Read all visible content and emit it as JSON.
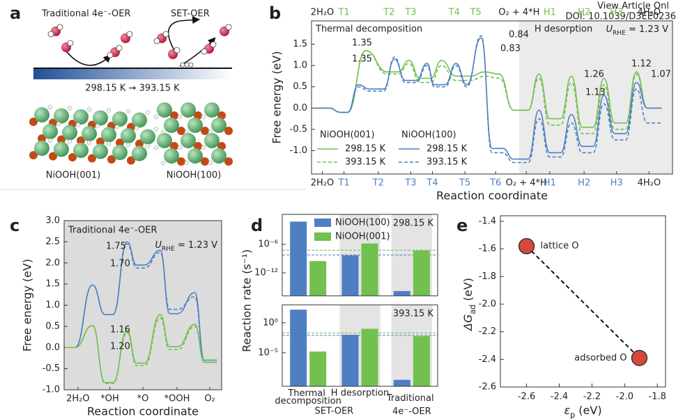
{
  "header": {
    "link": "View Article Onl",
    "doi": "DOI: 10.1039/D3EE0236"
  },
  "panel_a": {
    "label": "a",
    "left_title": "Traditional 4e⁻-OER",
    "right_title": "SET-OER",
    "temperature": "298.15 K → 393.15 K",
    "left_caption": "NiOOH(001)",
    "right_caption": "NiOOH(100)"
  },
  "panel_labels": [
    "b",
    "c",
    "d",
    "e"
  ],
  "chart_data": [
    {
      "type": "energy_profile",
      "xlim": [
        0,
        100
      ],
      "ylim": [
        -1.55,
        2.05
      ],
      "yticks": [
        {
          "value": -1,
          "label": "-1.0"
        },
        -0.5,
        {
          "value": 0,
          "label": "0.0"
        },
        0.5,
        {
          "value": 1,
          "label": "1.0"
        },
        1.5
      ],
      "xticks": [
        {
          "value": 3,
          "label": "2H₂O"
        },
        {
          "value": 9,
          "label": "T1"
        },
        {
          "value": 18.5,
          "label": "T2"
        },
        {
          "value": 27.5,
          "label": "T3"
        },
        {
          "value": 33.5,
          "label": "T4"
        },
        {
          "value": 42.5,
          "label": "T5"
        },
        {
          "value": 51,
          "label": "T6"
        },
        {
          "value": 59.5,
          "label": "O₂ + 4*H"
        },
        {
          "value": 66,
          "label": "H1"
        },
        {
          "value": 75.5,
          "label": "H2"
        },
        {
          "value": 84.5,
          "label": "H3"
        },
        {
          "value": 93.5,
          "label": "4H₂O"
        }
      ],
      "x2ticks": [
        {
          "value": 3,
          "label": "2H₂O"
        },
        {
          "value": 9,
          "label": "T1"
        },
        {
          "value": 21.5,
          "label": "T2"
        },
        {
          "value": 27.5,
          "label": "T3"
        },
        {
          "value": 39.5,
          "label": "T4"
        },
        {
          "value": 45.5,
          "label": "T5"
        },
        {
          "value": 57.5,
          "label": "O₂ + 4*H"
        },
        {
          "value": 66,
          "label": "H1"
        },
        {
          "value": 75.5,
          "label": "H2"
        },
        {
          "value": 84.5,
          "label": "H3"
        },
        {
          "value": 93.5,
          "label": "4H₂O"
        }
      ],
      "xtick_color": "#4e7fc3",
      "x2tick_color": "#72c04e",
      "xlabel": "Reaction coordinate",
      "ylabel": "Free energy (eV)",
      "shaded_x": [
        57.5,
        100
      ],
      "shade_color": "#ebebeb",
      "regions": [
        "Thermal decomposition",
        "H desorption"
      ],
      "potential": {
        "symbol": "U",
        "subscript": "RHE",
        "text": " = 1.23 V"
      },
      "legend_groups": [
        "NiOOH(001)",
        "NiOOH(100)"
      ],
      "series": [
        {
          "name": "298.15 K",
          "color": "#72c04e",
          "dash": false,
          "x": [
            1,
            5,
            8,
            10,
            15,
            21,
            24,
            27,
            30,
            33,
            36,
            40,
            44,
            48,
            52,
            56,
            60,
            63,
            66,
            69,
            72,
            75,
            78,
            81,
            84,
            87,
            90,
            93,
            97
          ],
          "values": [
            0,
            0,
            -0.1,
            -0.1,
            1.35,
            0.85,
            0.85,
            1.12,
            0.7,
            0.7,
            1.12,
            0.75,
            0.75,
            0.85,
            0.8,
            -0.05,
            -0.05,
            0.8,
            -0.25,
            -0.25,
            0.75,
            -0.45,
            -0.45,
            0.7,
            -0.35,
            -0.35,
            0.85,
            0,
            0
          ]
        },
        {
          "name": "393.15 K",
          "color": "#72c04e",
          "dash": true,
          "x": [
            1,
            5,
            8,
            10,
            15,
            21,
            24,
            27,
            30,
            33,
            36,
            40,
            44,
            48,
            52,
            56,
            60,
            63,
            66,
            69,
            72,
            75,
            78,
            81,
            84,
            87,
            90,
            93,
            97
          ],
          "values": [
            0,
            0,
            -0.1,
            -0.1,
            1.35,
            0.8,
            0.8,
            1.05,
            0.6,
            0.6,
            1.0,
            0.65,
            0.65,
            0.75,
            0.7,
            -0.05,
            -0.05,
            0.7,
            -0.4,
            -0.4,
            0.6,
            -0.6,
            -0.6,
            0.55,
            -0.5,
            -0.5,
            0.8,
            0,
            0
          ]
        },
        {
          "name": "298.15 K",
          "color": "#4e7fc3",
          "dash": false,
          "x": [
            1,
            5,
            8,
            10,
            13,
            16,
            20,
            23,
            26,
            29,
            32,
            34,
            37,
            40,
            43,
            47,
            50,
            53,
            56,
            60,
            63,
            66,
            69,
            72,
            75,
            78,
            81,
            84,
            87,
            90,
            93,
            97
          ],
          "values": [
            0,
            0,
            -0.1,
            -0.1,
            0.55,
            0.45,
            0.45,
            1.15,
            0.65,
            0.65,
            1.05,
            0.55,
            0.55,
            1.05,
            0.55,
            1.65,
            -0.95,
            -0.95,
            -1.2,
            -1.2,
            -0.05,
            -1.05,
            -1.05,
            -0.15,
            -0.9,
            -0.9,
            0.3,
            -0.6,
            -0.6,
            0.6,
            0,
            0
          ]
        },
        {
          "name": "393.15 K",
          "color": "#4e7fc3",
          "dash": true,
          "x": [
            1,
            5,
            8,
            10,
            13,
            16,
            20,
            23,
            26,
            29,
            32,
            34,
            37,
            40,
            43,
            47,
            50,
            53,
            56,
            60,
            63,
            66,
            69,
            72,
            75,
            78,
            81,
            84,
            87,
            90,
            93,
            97
          ],
          "values": [
            0,
            0,
            -0.1,
            -0.1,
            0.5,
            0.4,
            0.4,
            1.2,
            0.6,
            0.6,
            1.0,
            0.5,
            0.5,
            1.0,
            0.5,
            1.7,
            -1.05,
            -1.05,
            -1.28,
            -1.28,
            -0.25,
            -1.15,
            -1.15,
            -0.35,
            -1.05,
            -1.05,
            0.1,
            -0.75,
            -0.75,
            0.45,
            -0.35,
            -0.35
          ]
        }
      ],
      "annotations": [
        {
          "text": "1.35",
          "color": "#72c04e"
        },
        {
          "text": "1.35",
          "color": "#72c04e"
        },
        {
          "text": "0.84",
          "color": "#4e7fc3"
        },
        {
          "text": "0.83",
          "color": "#4e7fc3"
        },
        {
          "text": "1.26",
          "color": "#4e7fc3"
        },
        {
          "text": "1.13",
          "color": "#4e7fc3"
        },
        {
          "text": "1.12",
          "color": "#72c04e"
        },
        {
          "text": "1.07",
          "color": "#72c04e"
        }
      ]
    },
    {
      "type": "energy_profile",
      "xlim": [
        0,
        100
      ],
      "ylim": [
        -1,
        3
      ],
      "yticks": [
        {
          "value": -1,
          "label": "-1.0"
        },
        -0.5,
        {
          "value": 0,
          "label": "0.0"
        },
        0.5,
        {
          "value": 1,
          "label": "1.0"
        },
        1.5,
        {
          "value": 2,
          "label": "2.0"
        },
        2.5,
        {
          "value": 3,
          "label": "3.0"
        }
      ],
      "xticks": [
        {
          "value": 8.8,
          "label": "2H₂O"
        },
        {
          "value": 29,
          "label": "*OH"
        },
        {
          "value": 50,
          "label": "*O"
        },
        {
          "value": 71.7,
          "label": "*OOH"
        },
        {
          "value": 92.5,
          "label": "O₂"
        }
      ],
      "xlabel": "Reaction coordinate",
      "ylabel": "Free energy (eV)",
      "shaded_x": [
        0,
        100
      ],
      "shade_color": "#dcdcdc",
      "title": "Traditional 4e⁻-OER",
      "potential": {
        "symbol": "U",
        "subscript": "RHE",
        "text": " = 1.23 V"
      },
      "series": [
        {
          "color": "#4e7fc3",
          "dash": false,
          "x": [
            1,
            7,
            18,
            26,
            31,
            40,
            46,
            51,
            61,
            67,
            72,
            83,
            89,
            97
          ],
          "values": [
            0,
            0,
            1.48,
            0.78,
            0.78,
            2.5,
            1.95,
            1.95,
            2.3,
            0.8,
            0.8,
            1.3,
            -0.3,
            -0.3
          ]
        },
        {
          "color": "#4e7fc3",
          "dash": true,
          "x": [
            1,
            7,
            18,
            26,
            31,
            40,
            46,
            51,
            61,
            67,
            72,
            83,
            89,
            97
          ],
          "values": [
            0,
            0,
            1.48,
            0.78,
            0.78,
            2.45,
            1.88,
            1.88,
            2.25,
            0.9,
            0.9,
            1.2,
            -0.35,
            -0.35
          ]
        },
        {
          "color": "#72c04e",
          "dash": false,
          "x": [
            1,
            7,
            18,
            26,
            31,
            40,
            46,
            51,
            61,
            67,
            72,
            83,
            89,
            97
          ],
          "values": [
            0,
            0,
            0.52,
            -0.83,
            -0.83,
            0.4,
            -0.37,
            -0.37,
            0.78,
            0.02,
            0.02,
            0.55,
            -0.35,
            -0.35
          ]
        },
        {
          "color": "#72c04e",
          "dash": true,
          "x": [
            1,
            7,
            18,
            26,
            31,
            40,
            46,
            51,
            61,
            67,
            72,
            83,
            89,
            97
          ],
          "values": [
            0,
            0,
            0.52,
            -0.85,
            -0.85,
            0.35,
            -0.43,
            -0.43,
            0.7,
            -0.05,
            -0.05,
            0.5,
            -0.3,
            -0.3
          ]
        }
      ],
      "annotations": [
        {
          "text": "1.75",
          "color": "#4e7fc3"
        },
        {
          "text": "1.70",
          "color": "#4e7fc3"
        },
        {
          "text": "1.16",
          "color": "#72c04e"
        },
        {
          "text": "1.20",
          "color": "#72c04e"
        }
      ]
    },
    {
      "type": "bar",
      "yscale": "log",
      "title": "298.15 K",
      "ylabel": "Reaction rate (s⁻¹)",
      "ylim": [
        1.5e-17,
        2
      ],
      "yticks": [
        {
          "value": 1e-06,
          "label": "10⁻⁶"
        },
        {
          "value": 1e-12,
          "label": "10⁻¹²"
        }
      ],
      "shaded": [
        false,
        true,
        true
      ],
      "series": [
        {
          "name": "NiOOH(100)",
          "color": "#4e7fc3",
          "values": [
            0.06,
            5e-09,
            1.5e-16
          ]
        },
        {
          "name": "NiOOH(001)",
          "color": "#72c04e",
          "values": [
            3e-10,
            1.5e-06,
            5e-08
          ]
        }
      ],
      "hlines": [
        {
          "value": 6e-08,
          "color": "#72c04e"
        },
        {
          "value": 6e-09,
          "color": "#4e7fc3"
        }
      ]
    },
    {
      "type": "bar",
      "yscale": "log",
      "title": "393.15 K",
      "ylim": [
        2.5e-11,
        1000
      ],
      "yticks": [
        {
          "value": 1,
          "label": "10⁰"
        },
        {
          "value": 1e-05,
          "label": "10⁻⁵"
        }
      ],
      "shaded": [
        false,
        true,
        true
      ],
      "categories": [
        "Thermal decomposition",
        "H desorption",
        null
      ],
      "group_labels": [
        "SET-OER",
        "Traditional 4e⁻-OER"
      ],
      "series": [
        {
          "color": "#4e7fc3",
          "values": [
            160,
            0.01,
            3e-10
          ]
        },
        {
          "color": "#72c04e",
          "values": [
            1.6e-05,
            0.1,
            0.006
          ]
        }
      ],
      "hlines": [
        {
          "value": 0.02,
          "color": "#72c04e"
        },
        {
          "value": 0.008,
          "color": "#4e7fc3"
        }
      ]
    },
    {
      "type": "scatter",
      "x": [
        -2.6,
        -1.91
      ],
      "values": [
        -1.58,
        -2.39
      ],
      "point_labels": [
        "lattice O",
        "adsorbed O"
      ],
      "color": "#d24a3a",
      "xlim": [
        -2.76,
        -1.75
      ],
      "ylim": [
        -2.6,
        -1.4
      ],
      "xticks": [
        -2.6,
        -2.4,
        -2.2,
        {
          "value": -2,
          "label": "-2.0"
        },
        -1.8
      ],
      "yticks": [
        -1.4,
        -1.6,
        -1.8,
        {
          "value": -2,
          "label": "-2.0"
        },
        -2.2,
        -2.4,
        -2.6
      ],
      "xlabel": {
        "symbol": "ε",
        "subscript": "p",
        "text": " (eV)"
      },
      "ylabel": {
        "symbol": "ΔG",
        "subscript": "ad",
        "text": " (eV)"
      }
    }
  ]
}
